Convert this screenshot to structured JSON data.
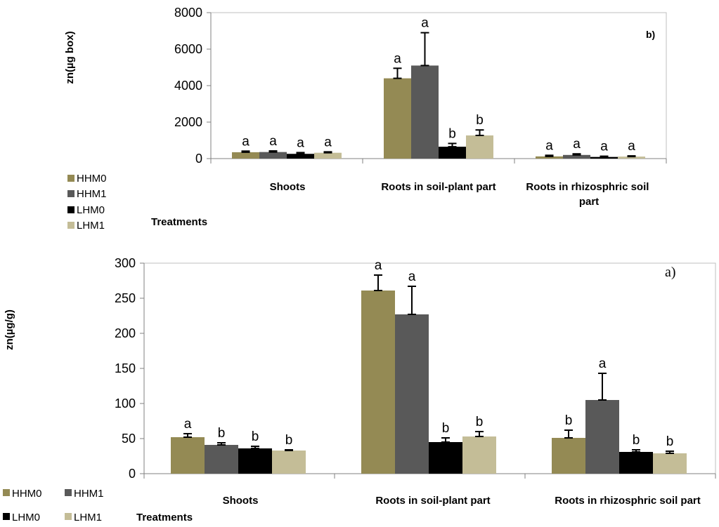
{
  "colors": {
    "HHM0": "#948A54",
    "HHM1": "#595959",
    "LHM0": "#000000",
    "LHM1": "#C4BD97"
  },
  "chart_data": [
    {
      "type": "bar",
      "panel_label": "b)",
      "ylabel": "zn(µg box)",
      "xlabel": "Treatments",
      "ylim": [
        0,
        8000
      ],
      "yticks": [
        0,
        2000,
        4000,
        6000,
        8000
      ],
      "categories": [
        "Shoots",
        "Roots in soil-plant part",
        "Roots in rhizosphric soil part"
      ],
      "series": [
        {
          "name": "HHM0",
          "values": [
            350,
            4400,
            120
          ],
          "errors": [
            60,
            550,
            60
          ],
          "letters": [
            "a",
            "a",
            "a"
          ]
        },
        {
          "name": "HHM1",
          "values": [
            360,
            5100,
            200
          ],
          "errors": [
            60,
            1800,
            60
          ],
          "letters": [
            "a",
            "a",
            "a"
          ]
        },
        {
          "name": "LHM0",
          "values": [
            260,
            650,
            90
          ],
          "errors": [
            70,
            180,
            40
          ],
          "letters": [
            "a",
            "b",
            "a"
          ]
        },
        {
          "name": "LHM1",
          "values": [
            320,
            1270,
            110
          ],
          "errors": [
            50,
            300,
            40
          ],
          "letters": [
            "a",
            "b",
            "a"
          ]
        }
      ],
      "legend": "left"
    },
    {
      "type": "bar",
      "panel_label": "a)",
      "ylabel": "zn(µg/g)",
      "xlabel": "Treatments",
      "ylim": [
        0,
        300
      ],
      "yticks": [
        0,
        50,
        100,
        150,
        200,
        250,
        300
      ],
      "categories": [
        "Shoots",
        "Roots in soil-plant part",
        "Roots in rhizosphric soil part"
      ],
      "series": [
        {
          "name": "HHM0",
          "values": [
            52,
            261,
            51
          ],
          "errors": [
            5,
            22,
            11
          ],
          "letters": [
            "a",
            "a",
            "b"
          ]
        },
        {
          "name": "HHM1",
          "values": [
            41,
            227,
            105
          ],
          "errors": [
            3,
            40,
            38
          ],
          "letters": [
            "b",
            "a",
            "a"
          ]
        },
        {
          "name": "LHM0",
          "values": [
            36,
            45,
            31
          ],
          "errors": [
            3,
            6,
            3
          ],
          "letters": [
            "b",
            "b",
            "b"
          ]
        },
        {
          "name": "LHM1",
          "values": [
            33,
            53,
            29
          ],
          "errors": [
            1,
            7,
            3
          ],
          "letters": [
            "b",
            "b",
            "b"
          ]
        }
      ],
      "legend": "bottom-left"
    }
  ]
}
